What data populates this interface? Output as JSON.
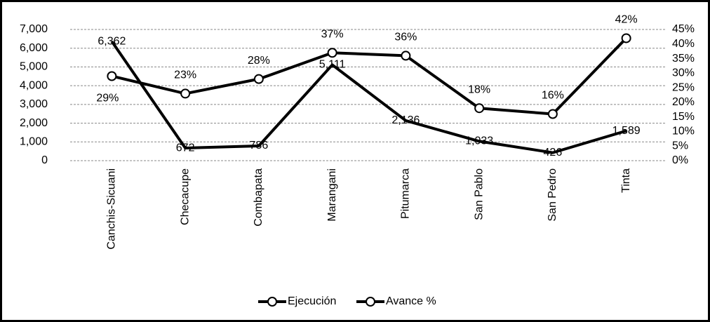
{
  "chart_data": {
    "type": "line",
    "categories": [
      "Canchis-Sicuani",
      "Checacupe",
      "Combapata",
      "Marangani",
      "Pitumarca",
      "San Pablo",
      "San Pedro",
      "Tinta"
    ],
    "series": [
      {
        "name": "Ejecución",
        "color": "#000000",
        "values": [
          6362,
          672,
          786,
          5111,
          2136,
          1033,
          426,
          1589
        ],
        "value_labels": [
          "6,362",
          "672",
          "786",
          "5,111",
          "2,136",
          "1,033",
          "426",
          "1,589"
        ]
      },
      {
        "name": "Avance %",
        "color": "#000000",
        "axis": "y2",
        "values": [
          29,
          23,
          28,
          37,
          36,
          18,
          16,
          42
        ],
        "value_labels": [
          "29%",
          "23%",
          "28%",
          "37%",
          "36%",
          "18%",
          "16%",
          "42%"
        ]
      }
    ],
    "ylim": [
      0,
      7000
    ],
    "yticks": [
      0,
      {
        "value": 1000,
        "label": "1,000"
      },
      {
        "value": 2000,
        "label": "2,000"
      },
      {
        "value": 3000,
        "label": "3,000"
      },
      {
        "value": 4000,
        "label": "4,000"
      },
      {
        "value": 5000,
        "label": "5,000"
      },
      {
        "value": 6000,
        "label": "6,000"
      },
      {
        "value": 7000,
        "label": "7,000"
      }
    ],
    "y2lim": [
      0,
      45
    ],
    "y2ticks": [
      {
        "value": 0,
        "label": "0%"
      },
      {
        "value": 5,
        "label": "5%"
      },
      {
        "value": 10,
        "label": "10%"
      },
      {
        "value": 15,
        "label": "15%"
      },
      {
        "value": 20,
        "label": "20%"
      },
      {
        "value": 25,
        "label": "25%"
      },
      {
        "value": 30,
        "label": "30%"
      },
      {
        "value": 35,
        "label": "35%"
      },
      {
        "value": 40,
        "label": "40%"
      },
      {
        "value": 45,
        "label": "45%"
      }
    ],
    "grid": true,
    "legend": "bottom"
  }
}
